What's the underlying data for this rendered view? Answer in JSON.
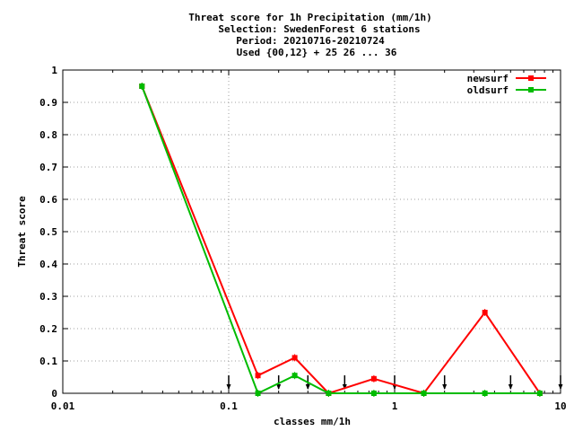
{
  "chart_data": {
    "type": "line",
    "title_lines": [
      "Threat score  for 1h Precipitation (mm/1h)",
      "Selection: SwedenForest      6 stations",
      "Period: 20210716-20210724",
      "Used {00,12} + 25 26 ... 36"
    ],
    "xlabel": "classes mm/1h",
    "ylabel": "Threat score",
    "xscale": "log",
    "xlim": [
      0.01,
      10
    ],
    "ylim": [
      0,
      1
    ],
    "x_ticks": [
      {
        "value": 0.01,
        "label": "0.01"
      },
      {
        "value": 0.1,
        "label": "0.1"
      },
      {
        "value": 1,
        "label": "1"
      },
      {
        "value": 10,
        "label": "10"
      }
    ],
    "y_ticks": [
      {
        "value": 0,
        "label": "0"
      },
      {
        "value": 0.1,
        "label": "0.1"
      },
      {
        "value": 0.2,
        "label": "0.2"
      },
      {
        "value": 0.3,
        "label": "0.3"
      },
      {
        "value": 0.4,
        "label": "0.4"
      },
      {
        "value": 0.5,
        "label": "0.5"
      },
      {
        "value": 0.6,
        "label": "0.6"
      },
      {
        "value": 0.7,
        "label": "0.7"
      },
      {
        "value": 0.8,
        "label": "0.8"
      },
      {
        "value": 0.9,
        "label": "0.9"
      },
      {
        "value": 1,
        "label": "1"
      }
    ],
    "grid": true,
    "legend_position": "top-right",
    "series": [
      {
        "name": "newsurf",
        "color": "#ff0000",
        "x": [
          0.03,
          0.15,
          0.25,
          0.4,
          0.75,
          1.5,
          3.5,
          7.5
        ],
        "y": [
          0.95,
          0.055,
          0.11,
          0.0,
          0.045,
          0.0,
          0.25,
          0.0
        ]
      },
      {
        "name": "oldsurf",
        "color": "#00bb00",
        "x": [
          0.03,
          0.15,
          0.25,
          0.4,
          0.75,
          1.5,
          3.5,
          7.5
        ],
        "y": [
          0.95,
          0.0,
          0.055,
          0.0,
          0.0,
          0.0,
          0.0,
          0.0
        ]
      }
    ],
    "class_markers": [
      0.1,
      0.2,
      0.3,
      0.5,
      1,
      2,
      5,
      10
    ]
  }
}
